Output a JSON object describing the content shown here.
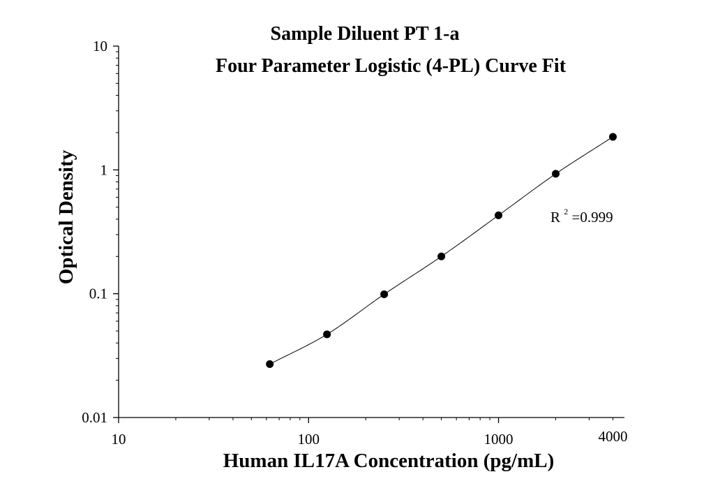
{
  "chart_data": {
    "type": "scatter",
    "title": "Sample Diluent PT 1-a",
    "subtitle": "Four Parameter Logistic (4-PL) Curve Fit",
    "xlabel": "Human IL17A Concentration (pg/mL)",
    "ylabel": "Optical Density",
    "x_scale": "log",
    "y_scale": "log",
    "xlim": [
      10,
      4600
    ],
    "ylim": [
      0.01,
      10
    ],
    "x_ticks": [
      {
        "value": 10,
        "label": "10"
      },
      {
        "value": 100,
        "label": "100"
      },
      {
        "value": 1000,
        "label": "1000"
      },
      {
        "value": 4000,
        "label": "4000"
      }
    ],
    "y_ticks": [
      {
        "value": 0.01,
        "label": "0.01"
      },
      {
        "value": 0.1,
        "label": "0.1"
      },
      {
        "value": 1,
        "label": "1"
      },
      {
        "value": 10,
        "label": "10"
      }
    ],
    "series": [
      {
        "x": [
          62.5,
          125,
          250,
          500,
          1000,
          2000,
          4000
        ],
        "y": [
          0.027,
          0.047,
          0.099,
          0.2,
          0.43,
          0.93,
          1.85
        ]
      }
    ],
    "fit_curve": "4-PL",
    "annotation": {
      "base": "R",
      "sup": "2",
      "text": "=0.999"
    },
    "grid": false,
    "marker_color": "#000000",
    "line_color": "#000000"
  }
}
